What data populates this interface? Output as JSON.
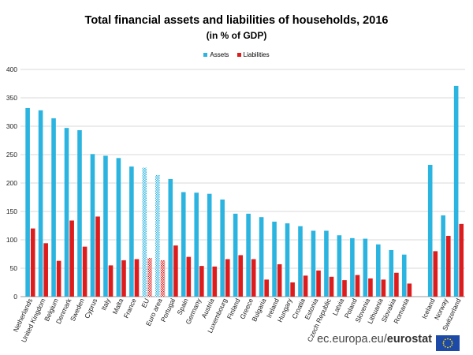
{
  "chart_data": {
    "type": "bar",
    "title": "Total financial assets and liabilities of households, 2016",
    "subtitle": "(in % of GDP)",
    "xlabel": "",
    "ylabel": "",
    "ylim": [
      0,
      400
    ],
    "yticks": [
      0,
      50,
      100,
      150,
      200,
      250,
      300,
      350,
      400
    ],
    "grid": true,
    "legend_position": "top-center",
    "categories": [
      "Netherlands",
      "United Kingdom",
      "Belgium",
      "Denmark",
      "Sweden",
      "Cyprus",
      "Italy",
      "Malta",
      "France",
      "EU",
      "Euro area",
      "Portugal",
      "Spain",
      "Germany",
      "Austria",
      "Luxembourg",
      "Finland",
      "Greece",
      "Bulgaria",
      "Ireland",
      "Hungary",
      "Croatia",
      "Estonia",
      "Czech Republic",
      "Latvia",
      "Poland",
      "Slovenia",
      "Lithuania",
      "Slovakia",
      "Romania",
      "",
      "Iceland",
      "Norway",
      "Switzerland"
    ],
    "aggregate_categories": [
      "EU",
      "Euro area"
    ],
    "series": [
      {
        "name": "Assets",
        "color": "#2cb4e0",
        "values": [
          332,
          328,
          314,
          297,
          293,
          251,
          248,
          244,
          229,
          227,
          214,
          207,
          184,
          183,
          181,
          171,
          146,
          146,
          140,
          132,
          129,
          124,
          116,
          116,
          108,
          103,
          102,
          92,
          82,
          74,
          null,
          232,
          143,
          371
        ]
      },
      {
        "name": "Liabilities",
        "color": "#dd1d1d",
        "values": [
          120,
          94,
          63,
          134,
          88,
          141,
          55,
          64,
          66,
          68,
          64,
          90,
          70,
          54,
          53,
          66,
          73,
          66,
          30,
          57,
          25,
          37,
          46,
          35,
          29,
          38,
          32,
          30,
          42,
          23,
          null,
          80,
          107,
          128
        ]
      }
    ]
  },
  "footer": {
    "site": "ec.europa.eu/",
    "brand": "eurostat"
  }
}
